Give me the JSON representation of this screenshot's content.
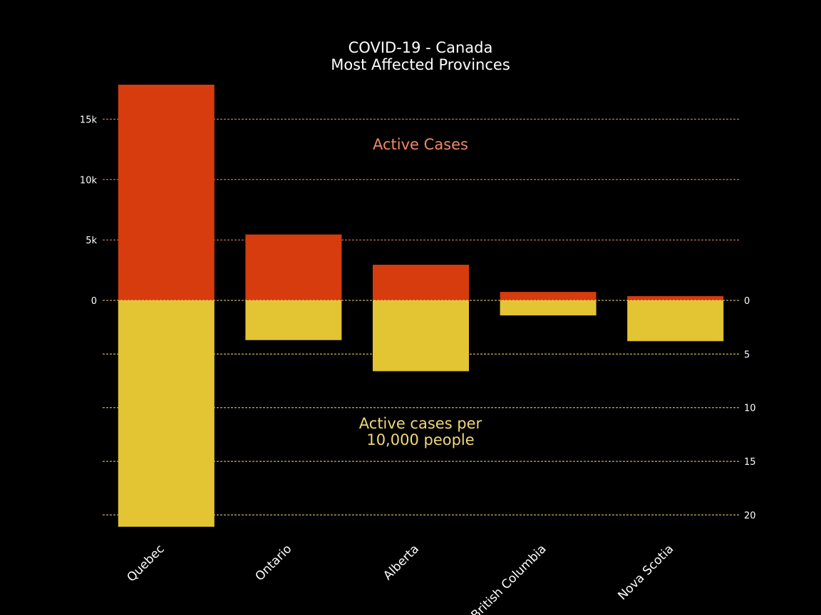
{
  "chart_data": {
    "type": "bar",
    "title_line1": "COVID-19 - Canada",
    "title_line2": "Most Affected Provinces",
    "categories": [
      "Quebec",
      "Ontario",
      "Alberta",
      "British Columbia",
      "Nova Scotia"
    ],
    "series": [
      {
        "name": "Active Cases",
        "axis": "left",
        "direction": "up",
        "color": "#d63c0e",
        "values": [
          17850,
          5450,
          2950,
          700,
          350
        ]
      },
      {
        "name": "Active cases per 10,000 people",
        "axis": "right",
        "direction": "down",
        "color": "#e3c432",
        "values": [
          21.1,
          3.7,
          6.6,
          1.4,
          3.8
        ]
      }
    ],
    "left_axis": {
      "ticks": [
        0,
        5000,
        10000,
        15000
      ],
      "tick_labels": [
        "0",
        "5k",
        "10k",
        "15k"
      ],
      "ylim": [
        0,
        17850
      ]
    },
    "right_axis": {
      "ticks": [
        0,
        5,
        10,
        15,
        20
      ],
      "tick_labels": [
        "0",
        "5",
        "10",
        "15",
        "20"
      ],
      "ylim": [
        0,
        21.1
      ]
    },
    "annotations": {
      "top_label": "Active Cases",
      "top_label_color": "#f08968",
      "bottom_label_line1": "Active cases per",
      "bottom_label_line2": "10,000 people",
      "bottom_label_color": "#f0d878"
    },
    "grid": true,
    "grid_color_top": "#f08968",
    "grid_color_bottom": "#f0d878",
    "background": "#000000",
    "text_color": "#ffffff"
  }
}
